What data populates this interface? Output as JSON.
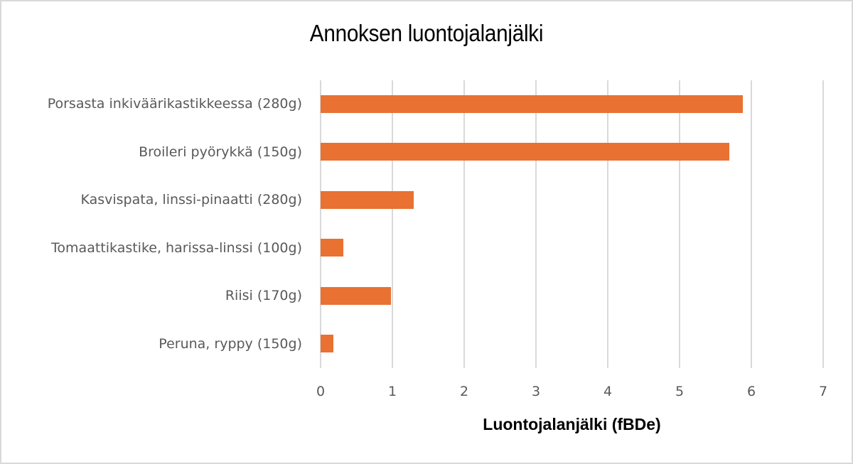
{
  "chart_data": {
    "type": "bar",
    "orientation": "horizontal",
    "title": "Annoksen luontojalanjälki",
    "xlabel": "Luontojalanjälki (fBDe)",
    "ylabel": "",
    "categories": [
      "Porsasta inkiväärikastikkeessa (280g)",
      "Broileri pyörykkä (150g)",
      "Kasvispata, linssi-pinaatti (280g)",
      "Tomaattikastike, harissa-linssi (100g)",
      "Riisi (170g)",
      "Peruna, ryppy (150g)"
    ],
    "values": [
      5.88,
      5.69,
      1.3,
      0.32,
      0.98,
      0.18
    ],
    "xlim": [
      0,
      7
    ],
    "xticks": [
      "0",
      "1",
      "2",
      "3",
      "4",
      "5",
      "6",
      "7"
    ],
    "grid": "vertical",
    "legend": "none",
    "bar_color": "#E97132"
  }
}
